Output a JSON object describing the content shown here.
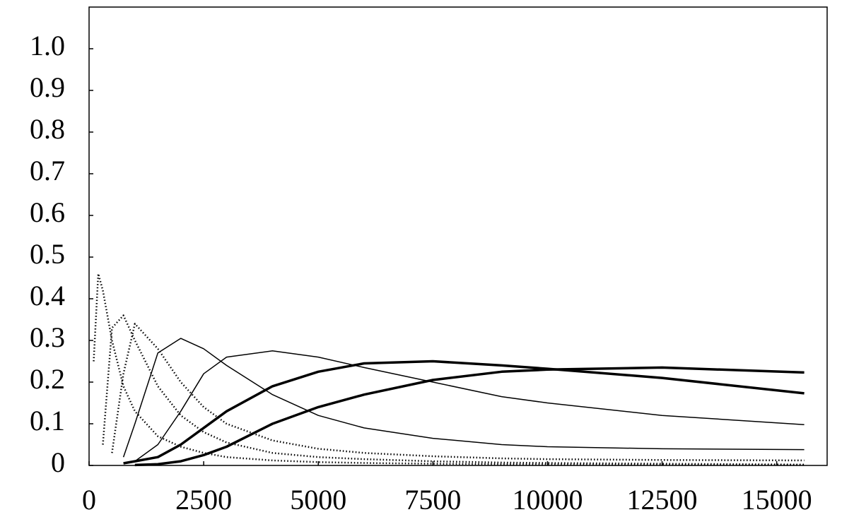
{
  "chart_data": {
    "type": "line",
    "xlim": [
      0,
      16100
    ],
    "ylim": [
      0,
      1.1
    ],
    "xticks": [
      0,
      2500,
      5000,
      7500,
      10000,
      12500,
      15000
    ],
    "yticks": [
      0,
      0.1,
      0.2,
      0.3,
      0.4,
      0.5,
      0.6,
      0.7,
      0.8,
      0.9,
      {
        "value": 1,
        "label": "1.0"
      }
    ],
    "grid": false,
    "series": [
      {
        "color": "#000000",
        "style": "dotted",
        "x": [
          100,
          200,
          300,
          500,
          750,
          1000,
          1500,
          2000,
          2500,
          3000,
          4000,
          5000,
          6000,
          7500,
          9000,
          10000,
          12500,
          15600
        ],
        "values": [
          0.25,
          0.46,
          0.42,
          0.3,
          0.19,
          0.13,
          0.07,
          0.045,
          0.03,
          0.02,
          0.012,
          0.008,
          0.006,
          0.004,
          0.003,
          0.003,
          0.002,
          0.001
        ]
      },
      {
        "color": "#000000",
        "style": "dotted",
        "x": [
          100,
          200,
          300,
          500,
          750,
          1000,
          1500,
          2000,
          2500,
          3000,
          4000,
          5000,
          6000,
          7500,
          9000,
          10000,
          12500,
          15600
        ],
        "values": [
          null,
          null,
          0.05,
          0.33,
          0.36,
          0.3,
          0.19,
          0.12,
          0.08,
          0.055,
          0.03,
          0.02,
          0.015,
          0.01,
          0.007,
          0.006,
          0.004,
          0.002
        ]
      },
      {
        "color": "#000000",
        "style": "dotted",
        "x": [
          100,
          200,
          300,
          500,
          750,
          1000,
          1500,
          2000,
          2500,
          3000,
          4000,
          5000,
          6000,
          7500,
          9000,
          10000,
          12500,
          15600
        ],
        "values": [
          null,
          null,
          null,
          0.03,
          0.22,
          0.34,
          0.28,
          0.2,
          0.14,
          0.1,
          0.06,
          0.04,
          0.03,
          0.022,
          0.017,
          0.015,
          0.013,
          0.012
        ]
      },
      {
        "color": "#000000",
        "style": "thin",
        "x": [
          100,
          200,
          300,
          500,
          750,
          1000,
          1500,
          2000,
          2500,
          3000,
          4000,
          5000,
          6000,
          7500,
          9000,
          10000,
          12500,
          15600
        ],
        "values": [
          null,
          null,
          null,
          null,
          0.02,
          0.1,
          0.27,
          0.305,
          0.28,
          0.24,
          0.17,
          0.12,
          0.09,
          0.065,
          0.05,
          0.045,
          0.04,
          0.038
        ]
      },
      {
        "color": "#000000",
        "style": "thin",
        "x": [
          100,
          200,
          300,
          500,
          750,
          1000,
          1500,
          2000,
          2500,
          3000,
          4000,
          5000,
          6000,
          7500,
          9000,
          10000,
          12500,
          15600
        ],
        "values": [
          null,
          null,
          null,
          null,
          null,
          0.01,
          0.05,
          0.13,
          0.22,
          0.26,
          0.275,
          0.26,
          0.235,
          0.2,
          0.165,
          0.15,
          0.12,
          0.098
        ]
      },
      {
        "color": "#000000",
        "style": "thick",
        "x": [
          100,
          200,
          300,
          500,
          750,
          1000,
          1500,
          2000,
          2500,
          3000,
          4000,
          5000,
          6000,
          7500,
          9000,
          10000,
          12500,
          15600
        ],
        "values": [
          null,
          null,
          null,
          null,
          0.005,
          0.01,
          0.02,
          0.05,
          0.09,
          0.13,
          0.19,
          0.225,
          0.245,
          0.25,
          0.24,
          0.232,
          0.21,
          0.173
        ]
      },
      {
        "color": "#000000",
        "style": "thick",
        "x": [
          100,
          200,
          300,
          500,
          750,
          1000,
          1500,
          2000,
          2500,
          3000,
          4000,
          5000,
          6000,
          7500,
          9000,
          10000,
          12500,
          15600
        ],
        "values": [
          null,
          null,
          null,
          null,
          null,
          0.001,
          0.003,
          0.01,
          0.025,
          0.045,
          0.1,
          0.14,
          0.17,
          0.205,
          0.225,
          0.23,
          0.235,
          0.223
        ]
      }
    ]
  }
}
